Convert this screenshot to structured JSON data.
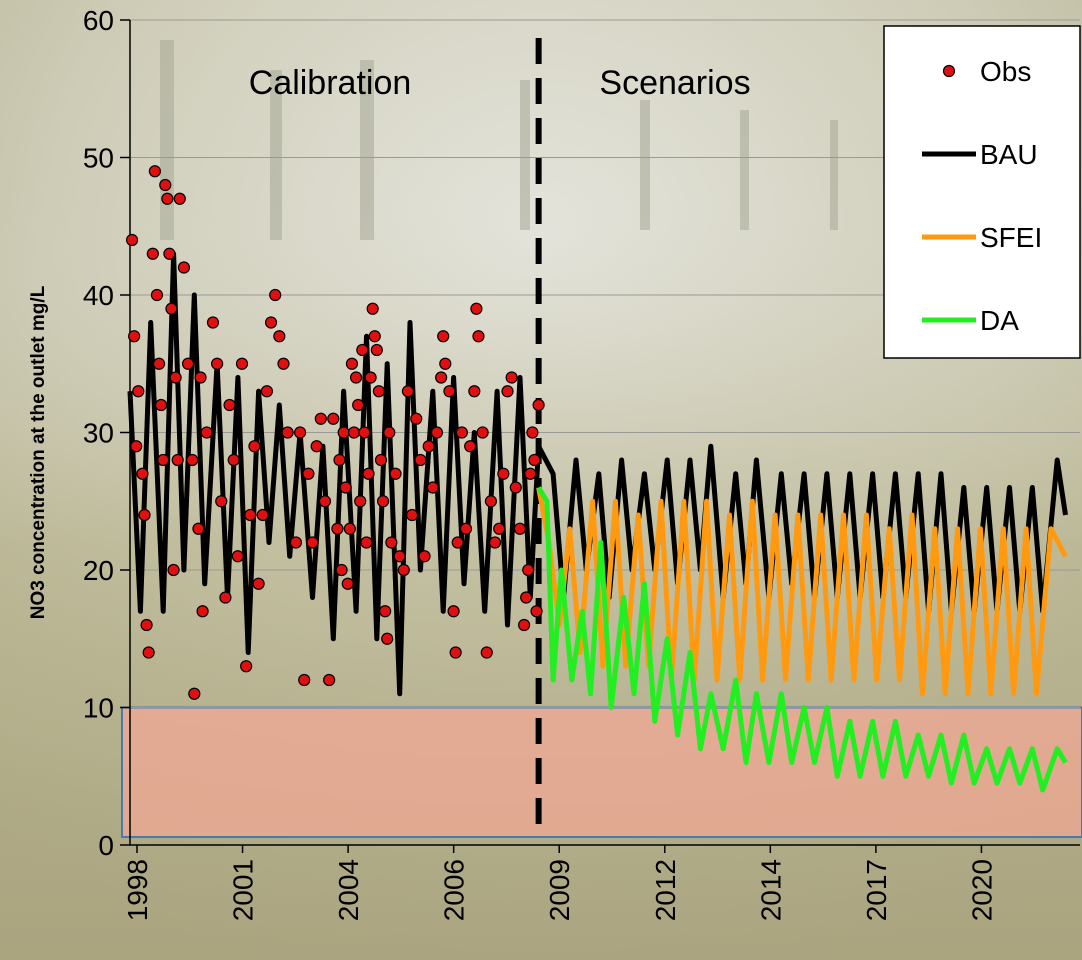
{
  "chart_data": {
    "type": "line",
    "ylabel": "NO3 concentration at the outlet mg/L",
    "ylim": [
      0,
      60
    ],
    "y_ticks": [
      "0",
      "10",
      "20",
      "30",
      "40",
      "50",
      "60"
    ],
    "x_ticks": [
      "1998",
      "2001",
      "2004",
      "2006",
      "2009",
      "2012",
      "2014",
      "2017",
      "2020"
    ],
    "xlim": [
      1998.0,
      2020.9
    ],
    "grid": true,
    "legend_position": "top-right",
    "annotations": {
      "left": "Calibration",
      "right": "Scenarios"
    },
    "divider_x": 2007.85,
    "threshold_band": [
      0,
      10
    ],
    "colors": {
      "obs_fill": "#e01010",
      "bau": "#000000",
      "sfei": "#ff9a10",
      "da": "#22ee22",
      "divider": "#000000",
      "band_fill": "#f4a894",
      "band_stroke": "#4a7aaa"
    },
    "series": [
      {
        "name": "BAU",
        "points": [
          [
            1998.0,
            33
          ],
          [
            1998.25,
            17
          ],
          [
            1998.5,
            38
          ],
          [
            1998.8,
            17
          ],
          [
            1999.05,
            43
          ],
          [
            1999.3,
            20
          ],
          [
            1999.55,
            40
          ],
          [
            1999.8,
            19
          ],
          [
            2000.1,
            35
          ],
          [
            2000.35,
            18
          ],
          [
            2000.6,
            34
          ],
          [
            2000.85,
            14
          ],
          [
            2001.1,
            33
          ],
          [
            2001.35,
            22
          ],
          [
            2001.6,
            32
          ],
          [
            2001.85,
            21
          ],
          [
            2002.1,
            30
          ],
          [
            2002.4,
            18
          ],
          [
            2002.65,
            29
          ],
          [
            2002.9,
            15
          ],
          [
            2003.15,
            33
          ],
          [
            2003.45,
            17
          ],
          [
            2003.7,
            37
          ],
          [
            2003.95,
            15
          ],
          [
            2004.2,
            35
          ],
          [
            2004.5,
            11
          ],
          [
            2004.75,
            38
          ],
          [
            2005.0,
            20
          ],
          [
            2005.3,
            33
          ],
          [
            2005.55,
            17
          ],
          [
            2005.8,
            34
          ],
          [
            2006.05,
            19
          ],
          [
            2006.3,
            30
          ],
          [
            2006.55,
            17
          ],
          [
            2006.85,
            33
          ],
          [
            2007.1,
            16
          ],
          [
            2007.4,
            34
          ],
          [
            2007.65,
            18
          ],
          [
            2007.85,
            29
          ],
          [
            2008.2,
            27
          ],
          [
            2008.45,
            18
          ],
          [
            2008.75,
            28
          ],
          [
            2009.0,
            20
          ],
          [
            2009.3,
            27
          ],
          [
            2009.55,
            18
          ],
          [
            2009.85,
            28
          ],
          [
            2010.1,
            20
          ],
          [
            2010.4,
            27
          ],
          [
            2010.65,
            20
          ],
          [
            2010.95,
            28
          ],
          [
            2011.2,
            19
          ],
          [
            2011.5,
            28
          ],
          [
            2011.75,
            20
          ],
          [
            2012.0,
            29
          ],
          [
            2012.3,
            18
          ],
          [
            2012.6,
            27
          ],
          [
            2012.85,
            19
          ],
          [
            2013.1,
            28
          ],
          [
            2013.4,
            18
          ],
          [
            2013.7,
            27
          ],
          [
            2013.95,
            19
          ],
          [
            2014.25,
            27
          ],
          [
            2014.5,
            18
          ],
          [
            2014.8,
            27
          ],
          [
            2015.05,
            18
          ],
          [
            2015.35,
            27
          ],
          [
            2015.6,
            18
          ],
          [
            2015.9,
            27
          ],
          [
            2016.15,
            18
          ],
          [
            2016.45,
            27
          ],
          [
            2016.7,
            18
          ],
          [
            2017.0,
            27
          ],
          [
            2017.25,
            17
          ],
          [
            2017.55,
            27
          ],
          [
            2017.8,
            17
          ],
          [
            2018.1,
            26
          ],
          [
            2018.35,
            17
          ],
          [
            2018.65,
            26
          ],
          [
            2018.9,
            17
          ],
          [
            2019.2,
            26
          ],
          [
            2019.45,
            17
          ],
          [
            2019.75,
            26
          ],
          [
            2020.0,
            17
          ],
          [
            2020.35,
            28
          ],
          [
            2020.55,
            24
          ]
        ]
      },
      {
        "name": "SFEI",
        "points": [
          [
            2007.85,
            26
          ],
          [
            2008.1,
            22
          ],
          [
            2008.35,
            16
          ],
          [
            2008.6,
            23
          ],
          [
            2008.85,
            14
          ],
          [
            2009.15,
            25
          ],
          [
            2009.4,
            13
          ],
          [
            2009.7,
            25
          ],
          [
            2009.95,
            13
          ],
          [
            2010.25,
            24
          ],
          [
            2010.5,
            13
          ],
          [
            2010.8,
            25
          ],
          [
            2011.05,
            12
          ],
          [
            2011.35,
            25
          ],
          [
            2011.6,
            12
          ],
          [
            2011.9,
            25
          ],
          [
            2012.15,
            12
          ],
          [
            2012.45,
            24
          ],
          [
            2012.7,
            12
          ],
          [
            2013.0,
            25
          ],
          [
            2013.25,
            12
          ],
          [
            2013.55,
            24
          ],
          [
            2013.8,
            12
          ],
          [
            2014.1,
            24
          ],
          [
            2014.35,
            12
          ],
          [
            2014.65,
            24
          ],
          [
            2014.9,
            12
          ],
          [
            2015.2,
            24
          ],
          [
            2015.45,
            12
          ],
          [
            2015.75,
            24
          ],
          [
            2016.0,
            12
          ],
          [
            2016.3,
            23
          ],
          [
            2016.55,
            12
          ],
          [
            2016.85,
            24
          ],
          [
            2017.1,
            11
          ],
          [
            2017.4,
            23
          ],
          [
            2017.65,
            11
          ],
          [
            2017.95,
            23
          ],
          [
            2018.2,
            11
          ],
          [
            2018.5,
            23
          ],
          [
            2018.75,
            11
          ],
          [
            2019.05,
            23
          ],
          [
            2019.3,
            11
          ],
          [
            2019.6,
            23
          ],
          [
            2019.85,
            11
          ],
          [
            2020.2,
            23
          ],
          [
            2020.55,
            21
          ]
        ]
      },
      {
        "name": "DA",
        "points": [
          [
            2007.85,
            26
          ],
          [
            2008.05,
            25
          ],
          [
            2008.2,
            12
          ],
          [
            2008.4,
            20
          ],
          [
            2008.65,
            12
          ],
          [
            2008.9,
            17
          ],
          [
            2009.1,
            11
          ],
          [
            2009.35,
            22
          ],
          [
            2009.6,
            10
          ],
          [
            2009.9,
            18
          ],
          [
            2010.15,
            11
          ],
          [
            2010.4,
            19
          ],
          [
            2010.65,
            9
          ],
          [
            2010.95,
            15
          ],
          [
            2011.2,
            8
          ],
          [
            2011.5,
            14
          ],
          [
            2011.75,
            7
          ],
          [
            2012.0,
            11
          ],
          [
            2012.3,
            7
          ],
          [
            2012.6,
            12
          ],
          [
            2012.85,
            6
          ],
          [
            2013.1,
            11
          ],
          [
            2013.4,
            6
          ],
          [
            2013.7,
            11
          ],
          [
            2013.95,
            6
          ],
          [
            2014.25,
            10
          ],
          [
            2014.5,
            6
          ],
          [
            2014.8,
            10
          ],
          [
            2015.05,
            5
          ],
          [
            2015.35,
            9
          ],
          [
            2015.6,
            5
          ],
          [
            2015.9,
            9
          ],
          [
            2016.15,
            5
          ],
          [
            2016.45,
            9
          ],
          [
            2016.7,
            5
          ],
          [
            2017.0,
            8
          ],
          [
            2017.25,
            5
          ],
          [
            2017.55,
            8
          ],
          [
            2017.8,
            4.5
          ],
          [
            2018.1,
            8
          ],
          [
            2018.35,
            4.5
          ],
          [
            2018.65,
            7
          ],
          [
            2018.9,
            4.5
          ],
          [
            2019.2,
            7
          ],
          [
            2019.45,
            4.5
          ],
          [
            2019.75,
            7
          ],
          [
            2020.0,
            4
          ],
          [
            2020.35,
            7
          ],
          [
            2020.55,
            6
          ]
        ]
      },
      {
        "name": "Obs",
        "points": [
          [
            1998.05,
            44
          ],
          [
            1998.1,
            37
          ],
          [
            1998.15,
            29
          ],
          [
            1998.2,
            33
          ],
          [
            1998.3,
            27
          ],
          [
            1998.35,
            24
          ],
          [
            1998.4,
            16
          ],
          [
            1998.45,
            14
          ],
          [
            1998.55,
            43
          ],
          [
            1998.6,
            49
          ],
          [
            1998.65,
            40
          ],
          [
            1998.7,
            35
          ],
          [
            1998.75,
            32
          ],
          [
            1998.8,
            28
          ],
          [
            1998.85,
            48
          ],
          [
            1998.9,
            47
          ],
          [
            1998.95,
            43
          ],
          [
            1999.0,
            39
          ],
          [
            1999.05,
            20
          ],
          [
            1999.1,
            34
          ],
          [
            1999.15,
            28
          ],
          [
            1999.2,
            47
          ],
          [
            1999.3,
            42
          ],
          [
            1999.4,
            35
          ],
          [
            1999.5,
            28
          ],
          [
            1999.55,
            11
          ],
          [
            1999.65,
            23
          ],
          [
            1999.7,
            34
          ],
          [
            1999.75,
            17
          ],
          [
            1999.85,
            30
          ],
          [
            2000.0,
            38
          ],
          [
            2000.1,
            35
          ],
          [
            2000.2,
            25
          ],
          [
            2000.3,
            18
          ],
          [
            2000.4,
            32
          ],
          [
            2000.5,
            28
          ],
          [
            2000.6,
            21
          ],
          [
            2000.7,
            35
          ],
          [
            2000.8,
            13
          ],
          [
            2000.9,
            24
          ],
          [
            2001.0,
            29
          ],
          [
            2001.1,
            19
          ],
          [
            2001.2,
            24
          ],
          [
            2001.3,
            33
          ],
          [
            2001.4,
            38
          ],
          [
            2001.5,
            40
          ],
          [
            2001.6,
            37
          ],
          [
            2001.7,
            35
          ],
          [
            2001.8,
            30
          ],
          [
            2002.0,
            22
          ],
          [
            2002.1,
            30
          ],
          [
            2002.2,
            12
          ],
          [
            2002.3,
            27
          ],
          [
            2002.4,
            22
          ],
          [
            2002.5,
            29
          ],
          [
            2002.6,
            31
          ],
          [
            2002.7,
            25
          ],
          [
            2002.8,
            12
          ],
          [
            2002.9,
            31
          ],
          [
            2003.0,
            23
          ],
          [
            2003.05,
            28
          ],
          [
            2003.1,
            20
          ],
          [
            2003.15,
            30
          ],
          [
            2003.2,
            26
          ],
          [
            2003.25,
            19
          ],
          [
            2003.3,
            23
          ],
          [
            2003.35,
            35
          ],
          [
            2003.4,
            30
          ],
          [
            2003.45,
            34
          ],
          [
            2003.5,
            32
          ],
          [
            2003.55,
            25
          ],
          [
            2003.6,
            36
          ],
          [
            2003.65,
            30
          ],
          [
            2003.7,
            22
          ],
          [
            2003.75,
            27
          ],
          [
            2003.8,
            34
          ],
          [
            2003.85,
            39
          ],
          [
            2003.9,
            37
          ],
          [
            2003.95,
            36
          ],
          [
            2004.0,
            33
          ],
          [
            2004.05,
            28
          ],
          [
            2004.1,
            25
          ],
          [
            2004.15,
            17
          ],
          [
            2004.2,
            15
          ],
          [
            2004.25,
            30
          ],
          [
            2004.3,
            22
          ],
          [
            2004.4,
            27
          ],
          [
            2004.5,
            21
          ],
          [
            2004.6,
            20
          ],
          [
            2004.7,
            33
          ],
          [
            2004.8,
            24
          ],
          [
            2004.9,
            31
          ],
          [
            2005.0,
            28
          ],
          [
            2005.1,
            21
          ],
          [
            2005.2,
            29
          ],
          [
            2005.3,
            26
          ],
          [
            2005.4,
            30
          ],
          [
            2005.5,
            34
          ],
          [
            2005.55,
            37
          ],
          [
            2005.6,
            35
          ],
          [
            2005.7,
            33
          ],
          [
            2005.8,
            17
          ],
          [
            2005.85,
            14
          ],
          [
            2005.9,
            22
          ],
          [
            2006.0,
            30
          ],
          [
            2006.1,
            23
          ],
          [
            2006.2,
            29
          ],
          [
            2006.3,
            33
          ],
          [
            2006.35,
            39
          ],
          [
            2006.4,
            37
          ],
          [
            2006.5,
            30
          ],
          [
            2006.6,
            14
          ],
          [
            2006.7,
            25
          ],
          [
            2006.8,
            22
          ],
          [
            2006.9,
            23
          ],
          [
            2007.0,
            27
          ],
          [
            2007.1,
            33
          ],
          [
            2007.2,
            34
          ],
          [
            2007.3,
            26
          ],
          [
            2007.4,
            23
          ],
          [
            2007.5,
            16
          ],
          [
            2007.55,
            18
          ],
          [
            2007.6,
            20
          ],
          [
            2007.65,
            27
          ],
          [
            2007.7,
            30
          ],
          [
            2007.75,
            28
          ],
          [
            2007.8,
            17
          ],
          [
            2007.85,
            32
          ]
        ]
      }
    ]
  }
}
